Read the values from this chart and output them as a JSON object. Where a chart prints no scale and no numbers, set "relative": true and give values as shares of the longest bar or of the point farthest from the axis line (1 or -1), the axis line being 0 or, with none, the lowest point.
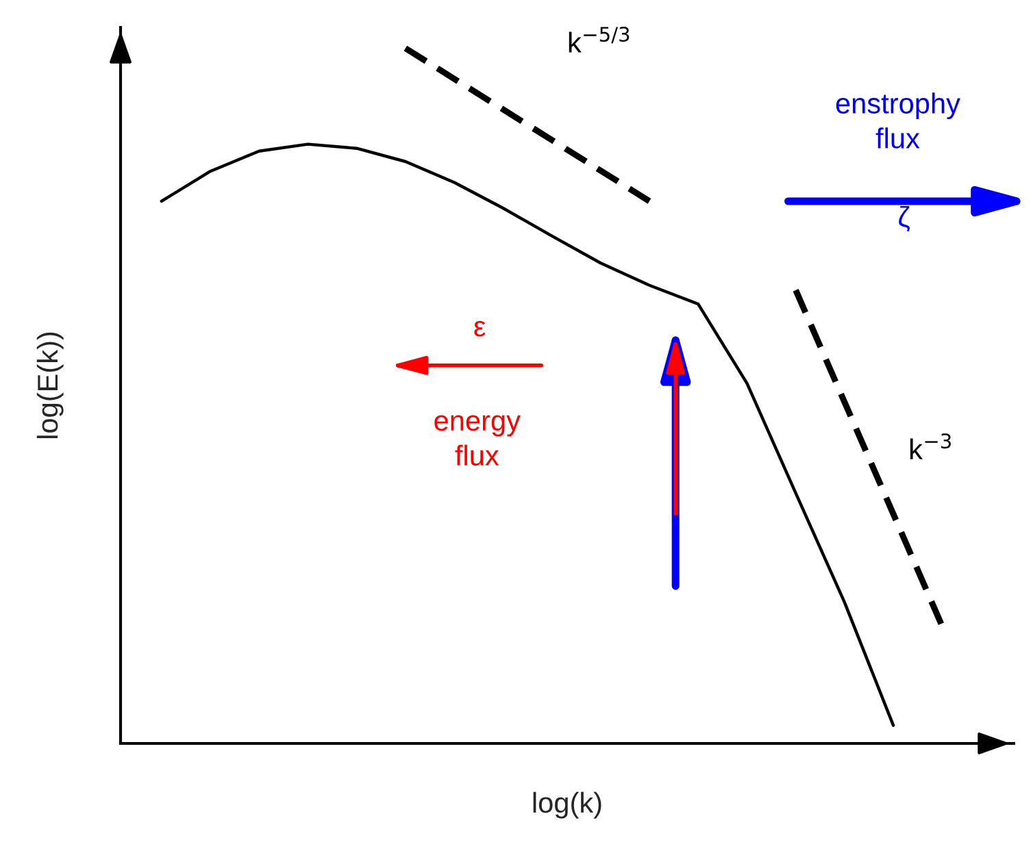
{
  "chart_data": {
    "type": "line",
    "relative": true,
    "xlabel": "log(k)",
    "ylabel": "log(E(k))",
    "categories": [
      null,
      null,
      null,
      null,
      null,
      null,
      null,
      null,
      null,
      null,
      null,
      null,
      null,
      null,
      null,
      null,
      null
    ],
    "series": [
      {
        "color": "#000000",
        "line_style": "solid",
        "values": [
          0.78,
          0.823,
          0.852,
          0.862,
          0.856,
          0.837,
          0.807,
          0.77,
          0.73,
          0.691,
          0.659,
          0.632,
          0.518,
          0.36,
          0.203,
          0.026,
          null
        ]
      },
      {
        "color": "#000000",
        "line_style": "dashed",
        "values": [
          null,
          null,
          null,
          null,
          null,
          1.0,
          0.956,
          0.912,
          0.868,
          0.824,
          0.78,
          null,
          null,
          null,
          null,
          null,
          null
        ]
      },
      {
        "color": "#000000",
        "line_style": "dashed",
        "values": [
          null,
          null,
          null,
          null,
          null,
          null,
          null,
          null,
          null,
          null,
          null,
          null,
          null,
          0.652,
          0.491,
          0.33,
          0.169
        ]
      }
    ],
    "annotations": [
      "k$^{−5/3}$",
      "enstrophy\nflux",
      "ζ",
      "ε",
      "energy\nflux",
      "k$^{−3}$"
    ],
    "grid": false,
    "legend": false,
    "marker": "none"
  }
}
